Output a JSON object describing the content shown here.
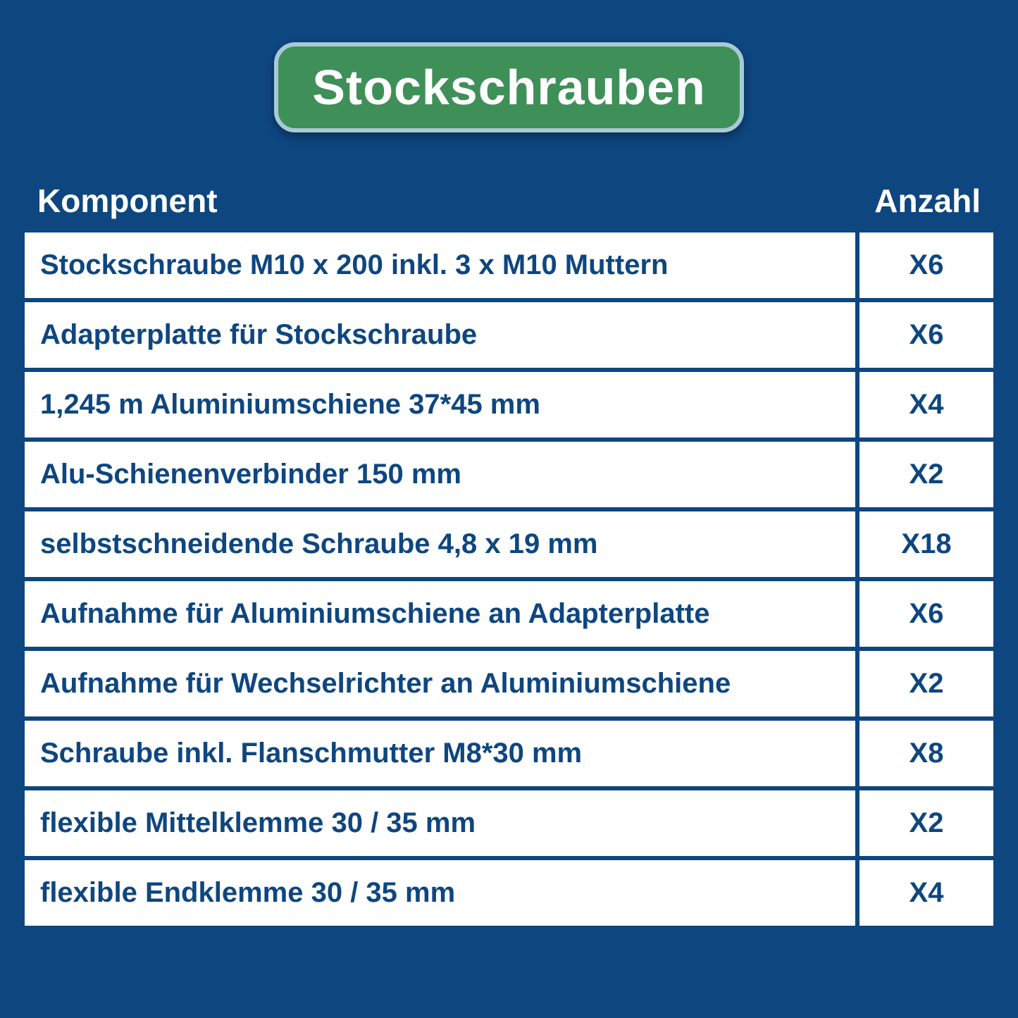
{
  "title": "Stockschrauben",
  "headers": {
    "component": "Komponent",
    "quantity": "Anzahl"
  },
  "colors": {
    "background": "#0e4680",
    "badge_bg": "#3f8f58",
    "badge_border": "#a9c9d6",
    "row_bg": "#ffffff",
    "text_dark": "#0e4680",
    "text_light": "#ffffff"
  },
  "typography": {
    "title_fontsize": 70,
    "header_fontsize": 46,
    "row_fontsize": 40,
    "font_family": "Arial"
  },
  "table": {
    "columns": [
      "Komponent",
      "Anzahl"
    ],
    "rows": [
      {
        "component": "Stockschraube M10 x 200 inkl. 3 x M10 Muttern",
        "quantity": "X6"
      },
      {
        "component": "Adapterplatte für Stockschraube",
        "quantity": "X6"
      },
      {
        "component": "1,245 m Aluminiumschiene 37*45 mm",
        "quantity": "X4"
      },
      {
        "component": "Alu-Schienenverbinder 150 mm",
        "quantity": "X2"
      },
      {
        "component": "selbstschneidende Schraube 4,8 x 19 mm",
        "quantity": "X18"
      },
      {
        "component": "Aufnahme für Aluminiumschiene an Adapterplatte",
        "quantity": "X6"
      },
      {
        "component": "Aufnahme für Wechselrichter an Aluminiumschiene",
        "quantity": "X2"
      },
      {
        "component": "Schraube inkl. Flanschmutter M8*30 mm",
        "quantity": "X8"
      },
      {
        "component": "flexible Mittelklemme 30 / 35 mm",
        "quantity": "X2"
      },
      {
        "component": "flexible Endklemme 30 / 35 mm",
        "quantity": "X4"
      }
    ]
  }
}
